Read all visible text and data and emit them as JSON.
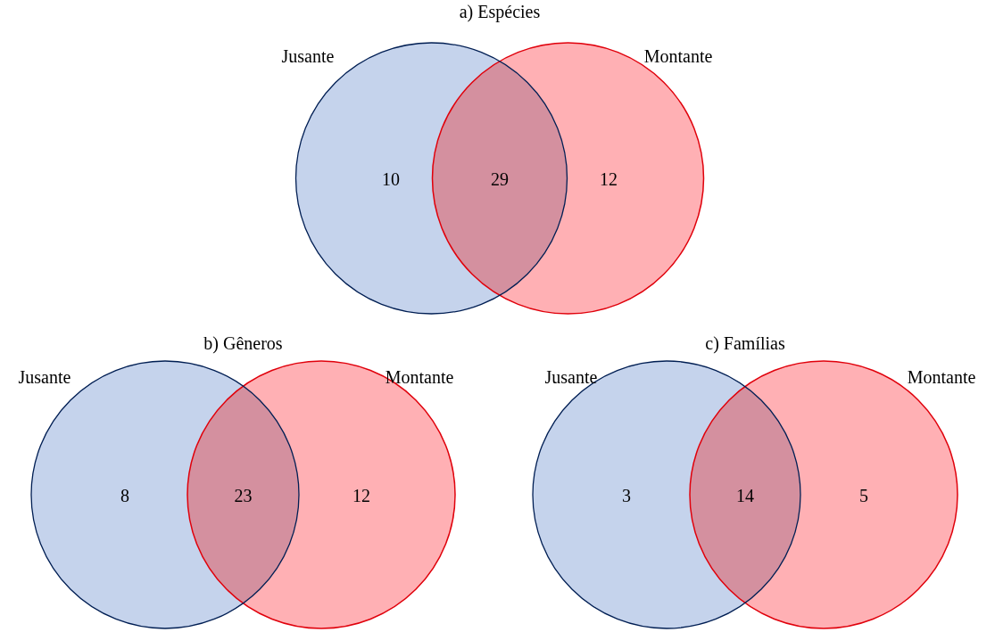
{
  "chart_data": [
    {
      "type": "other",
      "title": "a) Espécies",
      "categories": [
        null,
        null,
        null
      ],
      "values": [
        10,
        29,
        12
      ],
      "colors": [
        "#c5d3ec",
        "#d4909f",
        "#ffb0b4"
      ],
      "data_labels": true,
      "annotations": [
        "Jusante",
        "Montante"
      ]
    },
    {
      "type": "other",
      "title": "b) Gêneros",
      "categories": [
        null,
        null,
        null
      ],
      "values": [
        8,
        23,
        12
      ],
      "colors": [
        "#c5d3ec",
        "#d4909f",
        "#ffb0b4"
      ],
      "data_labels": true,
      "annotations": [
        "Jusante",
        "Montante"
      ]
    },
    {
      "type": "other",
      "title": "c) Famílias",
      "categories": [
        null,
        null,
        null
      ],
      "values": [
        3,
        14,
        5
      ],
      "colors": [
        "#c5d3ec",
        "#d4909f",
        "#ffb0b4"
      ],
      "data_labels": true,
      "annotations": [
        "Jusante",
        "Montante"
      ]
    }
  ]
}
